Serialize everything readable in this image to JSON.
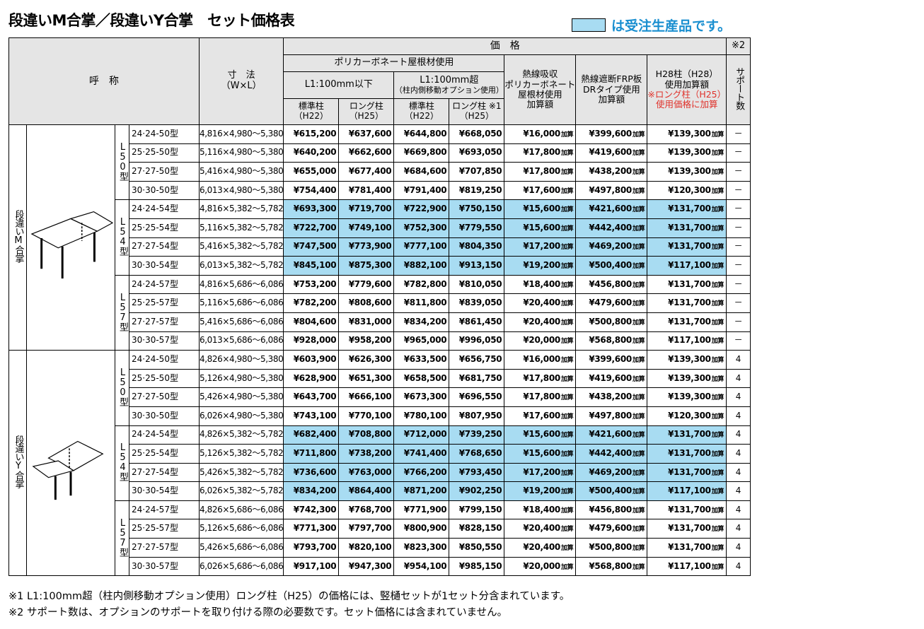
{
  "title": "段違いM合掌／段違いY合掌　セット価格表",
  "legend_text": "は受注生産品です。",
  "colors": {
    "blue": "#a8dcf2",
    "header_gray": "#e5e5e5",
    "legend_text": "#1a8fd0",
    "red": "#e0322b"
  },
  "header": {
    "name": "呼　称",
    "dims": "寸　法",
    "dims_unit": "（W×L）",
    "price": "価　格",
    "note2": "※2",
    "polycarb": "ポリカーボネート屋根材使用",
    "l1_under": "L1:100mm以下",
    "l1_over": "L1:100mm超",
    "l1_over_sub": "（柱内側移動オプション使用）",
    "std_col": "標準柱",
    "std_col_sub": "（H22）",
    "long_col": "ロング柱",
    "long_col_sub": "（H25）",
    "long_col_note": "ロング柱 ※1",
    "heat_absorb": [
      "熱線吸収",
      "ポリカーボネート",
      "屋根材使用",
      "加算額"
    ],
    "heat_frp": [
      "熱線遮断FRP板",
      "DRタイプ使用",
      "加算額"
    ],
    "h28": [
      "H28柱（H28）",
      "使用加算額"
    ],
    "h28_red": [
      "※ロング柱（H25）",
      "使用価格に加算"
    ],
    "support": "サポート数",
    "add_label": "加算"
  },
  "groups": [
    {
      "name": "段違いM合掌",
      "icon": "m-gassho-illustration",
      "subgroups": [
        {
          "label": "L50型",
          "blue": false,
          "rows": [
            {
              "size": "24·24-50型",
              "dims": "4,816×4,980～5,380",
              "p": [
                "¥615,200",
                "¥637,600",
                "¥644,800",
                "¥668,050"
              ],
              "a": [
                "¥16,000",
                "¥399,600",
                "¥139,300"
              ],
              "s": "－"
            },
            {
              "size": "25·25-50型",
              "dims": "5,116×4,980～5,380",
              "p": [
                "¥640,200",
                "¥662,600",
                "¥669,800",
                "¥693,050"
              ],
              "a": [
                "¥17,800",
                "¥419,600",
                "¥139,300"
              ],
              "s": "－"
            },
            {
              "size": "27·27-50型",
              "dims": "5,416×4,980～5,380",
              "p": [
                "¥655,000",
                "¥677,400",
                "¥684,600",
                "¥707,850"
              ],
              "a": [
                "¥17,800",
                "¥438,200",
                "¥139,300"
              ],
              "s": "－"
            },
            {
              "size": "30·30-50型",
              "dims": "6,013×4,980～5,380",
              "p": [
                "¥754,400",
                "¥781,400",
                "¥791,400",
                "¥819,250"
              ],
              "a": [
                "¥17,600",
                "¥497,800",
                "¥120,300"
              ],
              "s": "－"
            }
          ]
        },
        {
          "label": "L54型",
          "blue": true,
          "rows": [
            {
              "size": "24·24-54型",
              "dims": "4,816×5,382～5,782",
              "p": [
                "¥693,300",
                "¥719,700",
                "¥722,900",
                "¥750,150"
              ],
              "a": [
                "¥15,600",
                "¥421,600",
                "¥131,700"
              ],
              "s": "－"
            },
            {
              "size": "25·25-54型",
              "dims": "5,116×5,382～5,782",
              "p": [
                "¥722,700",
                "¥749,100",
                "¥752,300",
                "¥779,550"
              ],
              "a": [
                "¥15,600",
                "¥442,400",
                "¥131,700"
              ],
              "s": "－"
            },
            {
              "size": "27·27-54型",
              "dims": "5,416×5,382～5,782",
              "p": [
                "¥747,500",
                "¥773,900",
                "¥777,100",
                "¥804,350"
              ],
              "a": [
                "¥17,200",
                "¥469,200",
                "¥131,700"
              ],
              "s": "－"
            },
            {
              "size": "30·30-54型",
              "dims": "6,013×5,382～5,782",
              "p": [
                "¥845,100",
                "¥875,300",
                "¥882,100",
                "¥913,150"
              ],
              "a": [
                "¥19,200",
                "¥500,400",
                "¥117,100"
              ],
              "s": "－"
            }
          ]
        },
        {
          "label": "L57型",
          "blue": false,
          "rows": [
            {
              "size": "24·24-57型",
              "dims": "4,816×5,686～6,086",
              "p": [
                "¥753,200",
                "¥779,600",
                "¥782,800",
                "¥810,050"
              ],
              "a": [
                "¥18,400",
                "¥456,800",
                "¥131,700"
              ],
              "s": "－"
            },
            {
              "size": "25·25-57型",
              "dims": "5,116×5,686～6,086",
              "p": [
                "¥782,200",
                "¥808,600",
                "¥811,800",
                "¥839,050"
              ],
              "a": [
                "¥20,400",
                "¥479,600",
                "¥131,700"
              ],
              "s": "－"
            },
            {
              "size": "27·27-57型",
              "dims": "5,416×5,686～6,086",
              "p": [
                "¥804,600",
                "¥831,000",
                "¥834,200",
                "¥861,450"
              ],
              "a": [
                "¥20,400",
                "¥500,800",
                "¥131,700"
              ],
              "s": "－"
            },
            {
              "size": "30·30-57型",
              "dims": "6,013×5,686～6,086",
              "p": [
                "¥928,000",
                "¥958,200",
                "¥965,000",
                "¥996,050"
              ],
              "a": [
                "¥20,000",
                "¥568,800",
                "¥117,100"
              ],
              "s": "－"
            }
          ]
        }
      ]
    },
    {
      "name": "段違いY合掌",
      "icon": "y-gassho-illustration",
      "subgroups": [
        {
          "label": "L50型",
          "blue": false,
          "rows": [
            {
              "size": "24·24-50型",
              "dims": "4,826×4,980～5,380",
              "p": [
                "¥603,900",
                "¥626,300",
                "¥633,500",
                "¥656,750"
              ],
              "a": [
                "¥16,000",
                "¥399,600",
                "¥139,300"
              ],
              "s": "4"
            },
            {
              "size": "25·25-50型",
              "dims": "5,126×4,980～5,380",
              "p": [
                "¥628,900",
                "¥651,300",
                "¥658,500",
                "¥681,750"
              ],
              "a": [
                "¥17,800",
                "¥419,600",
                "¥139,300"
              ],
              "s": "4"
            },
            {
              "size": "27·27-50型",
              "dims": "5,426×4,980～5,380",
              "p": [
                "¥643,700",
                "¥666,100",
                "¥673,300",
                "¥696,550"
              ],
              "a": [
                "¥17,800",
                "¥438,200",
                "¥139,300"
              ],
              "s": "4"
            },
            {
              "size": "30·30-50型",
              "dims": "6,026×4,980～5,380",
              "p": [
                "¥743,100",
                "¥770,100",
                "¥780,100",
                "¥807,950"
              ],
              "a": [
                "¥17,600",
                "¥497,800",
                "¥120,300"
              ],
              "s": "4"
            }
          ]
        },
        {
          "label": "L54型",
          "blue": true,
          "rows": [
            {
              "size": "24·24-54型",
              "dims": "4,826×5,382～5,782",
              "p": [
                "¥682,400",
                "¥708,800",
                "¥712,000",
                "¥739,250"
              ],
              "a": [
                "¥15,600",
                "¥421,600",
                "¥131,700"
              ],
              "s": "4"
            },
            {
              "size": "25·25-54型",
              "dims": "5,126×5,382～5,782",
              "p": [
                "¥711,800",
                "¥738,200",
                "¥741,400",
                "¥768,650"
              ],
              "a": [
                "¥15,600",
                "¥442,400",
                "¥131,700"
              ],
              "s": "4"
            },
            {
              "size": "27·27-54型",
              "dims": "5,426×5,382～5,782",
              "p": [
                "¥736,600",
                "¥763,000",
                "¥766,200",
                "¥793,450"
              ],
              "a": [
                "¥17,200",
                "¥469,200",
                "¥131,700"
              ],
              "s": "4"
            },
            {
              "size": "30·30-54型",
              "dims": "6,026×5,382～5,782",
              "p": [
                "¥834,200",
                "¥864,400",
                "¥871,200",
                "¥902,250"
              ],
              "a": [
                "¥19,200",
                "¥500,400",
                "¥117,100"
              ],
              "s": "4"
            }
          ]
        },
        {
          "label": "L57型",
          "blue": false,
          "rows": [
            {
              "size": "24·24-57型",
              "dims": "4,826×5,686～6,086",
              "p": [
                "¥742,300",
                "¥768,700",
                "¥771,900",
                "¥799,150"
              ],
              "a": [
                "¥18,400",
                "¥456,800",
                "¥131,700"
              ],
              "s": "4"
            },
            {
              "size": "25·25-57型",
              "dims": "5,126×5,686～6,086",
              "p": [
                "¥771,300",
                "¥797,700",
                "¥800,900",
                "¥828,150"
              ],
              "a": [
                "¥20,400",
                "¥479,600",
                "¥131,700"
              ],
              "s": "4"
            },
            {
              "size": "27·27-57型",
              "dims": "5,426×5,686～6,086",
              "p": [
                "¥793,700",
                "¥820,100",
                "¥823,300",
                "¥850,550"
              ],
              "a": [
                "¥20,400",
                "¥500,800",
                "¥131,700"
              ],
              "s": "4"
            },
            {
              "size": "30·30-57型",
              "dims": "6,026×5,686～6,086",
              "p": [
                "¥917,100",
                "¥947,300",
                "¥954,100",
                "¥985,150"
              ],
              "a": [
                "¥20,000",
                "¥568,800",
                "¥117,100"
              ],
              "s": "4"
            }
          ]
        }
      ]
    }
  ],
  "notes": [
    "※1 L1:100mm超（柱内側移動オプション使用）ロング柱（H25）の価格には、竪樋セットが1セット分含まれています。",
    "※2 サポート数は、オプションのサポートを取り付ける際の必要数です。セット価格には含まれていません。"
  ]
}
